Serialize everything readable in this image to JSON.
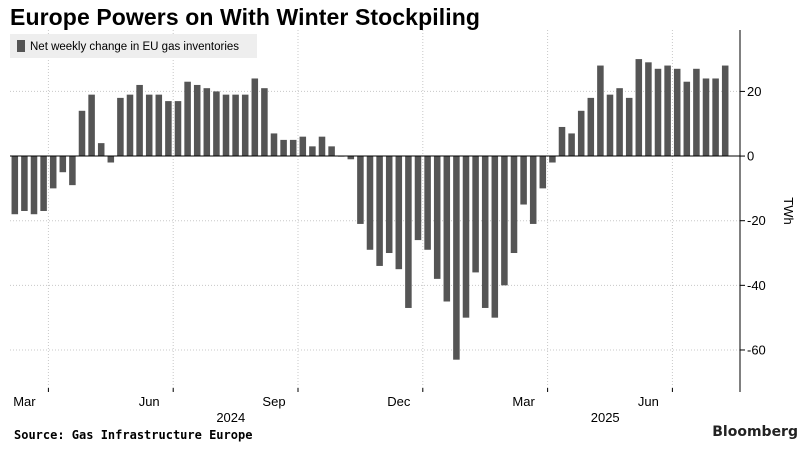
{
  "title": "Europe Powers on With Winter Stockpiling",
  "source": "Source: Gas Infrastructure Europe",
  "brand": "Bloomberg",
  "colors": {
    "bar": "#555555",
    "grid": "#c8c8c8",
    "zero": "#000000"
  },
  "chart_data": {
    "type": "bar",
    "title": "Europe Powers on With Winter Stockpiling",
    "ylabel": "TWh",
    "xlabel": "",
    "ylim": [
      -73,
      39
    ],
    "yticks": [
      20,
      0,
      -20,
      -40,
      -60
    ],
    "ytick_labels": [
      "20",
      "0",
      "-20",
      "-40",
      "-60"
    ],
    "y_axis_side": "right",
    "grid": true,
    "legend": {
      "placement": "top-left",
      "entries": [
        "Net weekly change in EU gas inventories"
      ]
    },
    "month_ticks": [
      {
        "label": "Mar",
        "week_index": 4
      },
      {
        "label": "Jun",
        "week_index": 17
      },
      {
        "label": "Sep",
        "week_index": 30
      },
      {
        "label": "Dec",
        "week_index": 43
      },
      {
        "label": "Mar",
        "week_index": 56
      },
      {
        "label": "Jun",
        "week_index": 69
      }
    ],
    "year_labels": [
      {
        "label": "2024",
        "week_index": 23
      },
      {
        "label": "2025",
        "week_index": 62
      }
    ],
    "series": [
      {
        "name": "Net weekly change in EU gas inventories",
        "values": [
          -18,
          -17,
          -18,
          -17,
          -10,
          -5,
          -9,
          14,
          19,
          4,
          -2,
          18,
          19,
          22,
          19,
          19,
          17,
          17,
          23,
          22,
          21,
          20,
          19,
          19,
          19,
          24,
          21,
          7,
          5,
          5,
          6,
          3,
          6,
          3,
          0,
          -1,
          -21,
          -29,
          -34,
          -30,
          -35,
          -47,
          -26,
          -29,
          -38,
          -45,
          -63,
          -50,
          -36,
          -47,
          -50,
          -40,
          -30,
          -15,
          -21,
          -10,
          -2,
          9,
          7,
          14,
          18,
          28,
          19,
          21,
          18,
          30,
          29,
          27,
          28,
          27,
          23,
          27,
          24,
          24,
          28
        ]
      }
    ]
  }
}
